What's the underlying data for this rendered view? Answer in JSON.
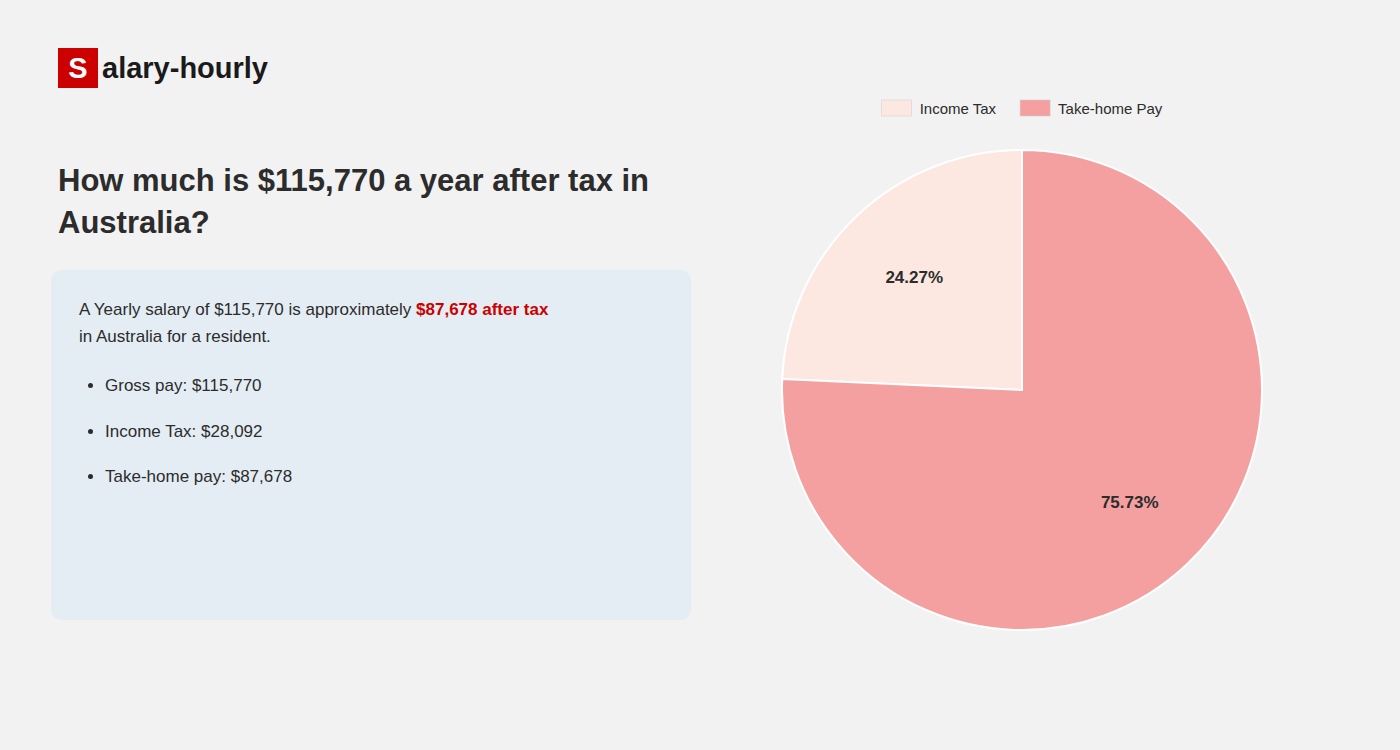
{
  "chart_data": {
    "type": "pie",
    "title": "How much is $115,770 a year after tax in\nAustralia?",
    "categories": [
      "Income Tax",
      "Take-home Pay"
    ],
    "values": [
      24.27,
      75.73
    ],
    "value_labels": [
      "24.27%",
      "75.73%"
    ],
    "colors": [
      "#fce8e0",
      "#f4a0a0"
    ],
    "data_labels": true,
    "legend": "top",
    "annotations": [
      "S",
      "alary-hourly",
      "A Yearly salary of $115,770 is approximately ",
      "$87,678 after tax",
      "in Australia for a resident.",
      "Gross pay: $115,770",
      "Income Tax: $28,092",
      "Take-home pay: $87,678"
    ]
  }
}
